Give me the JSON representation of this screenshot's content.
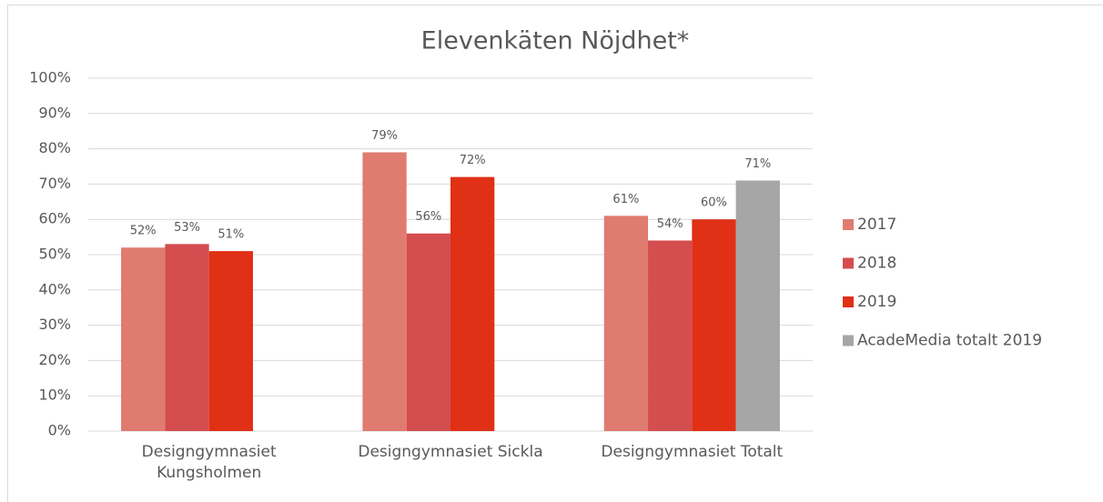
{
  "chart_data": {
    "type": "bar",
    "title": "Elevenkäten Nöjdhet*",
    "categories": [
      "Designgymnasiet Kungsholmen",
      "Designgymnasiet Sickla",
      "Designgymnasiet Totalt"
    ],
    "series": [
      {
        "name": "2017",
        "color": "#e07b70",
        "values": [
          52,
          79,
          61
        ],
        "value_labels": [
          "52%",
          "79%",
          "61%"
        ]
      },
      {
        "name": "2018",
        "color": "#d44d4f",
        "values": [
          53,
          56,
          54
        ],
        "value_labels": [
          "53%",
          "56%",
          "54%"
        ]
      },
      {
        "name": "2019",
        "color": "#e03016",
        "values": [
          51,
          72,
          60
        ],
        "value_labels": [
          "51%",
          "72%",
          "60%"
        ]
      },
      {
        "name": "AcadeMedia totalt 2019",
        "color": "#a6a6a6",
        "values": [
          null,
          null,
          71
        ],
        "value_labels": [
          null,
          null,
          "71%"
        ]
      }
    ],
    "ylim": [
      0,
      100
    ],
    "yticks": [
      {
        "value": 0,
        "label": "0%"
      },
      {
        "value": 10,
        "label": "10%"
      },
      {
        "value": 20,
        "label": "20%"
      },
      {
        "value": 30,
        "label": "30%"
      },
      {
        "value": 40,
        "label": "40%"
      },
      {
        "value": 50,
        "label": "50%"
      },
      {
        "value": 60,
        "label": "60%"
      },
      {
        "value": 70,
        "label": "70%"
      },
      {
        "value": 80,
        "label": "80%"
      },
      {
        "value": 90,
        "label": "90%"
      },
      {
        "value": 100,
        "label": "100%"
      }
    ],
    "grid": true,
    "legend": "right"
  }
}
